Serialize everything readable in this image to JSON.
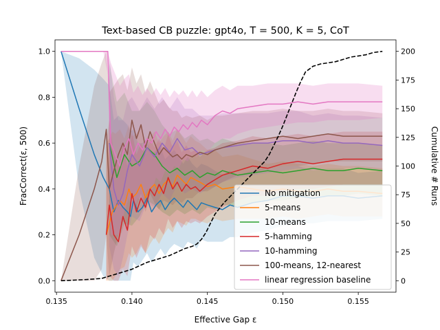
{
  "chart_data": {
    "type": "line",
    "title": "Text-based CB puzzle: gpt4o, T = 500, K = 5, CoT",
    "xlabel": "Effective Gap ε",
    "ylabel": "FracCorrect(ε, 500)",
    "y2label": "Cumulative # Runs",
    "xlim": [
      0.1349,
      0.1575
    ],
    "ylim": [
      -0.05,
      1.05
    ],
    "y2lim": [
      -10,
      210
    ],
    "xticks": [
      0.135,
      0.14,
      0.145,
      0.15,
      0.155
    ],
    "xtick_labels": [
      "0.135",
      "0.140",
      "0.145",
      "0.150",
      "0.155"
    ],
    "yticks": [
      0.0,
      0.2,
      0.4,
      0.6,
      0.8,
      1.0
    ],
    "ytick_labels": [
      "0.0",
      "0.2",
      "0.4",
      "0.6",
      "0.8",
      "1.0"
    ],
    "y2ticks": [
      0,
      25,
      50,
      75,
      100,
      125,
      150,
      175,
      200
    ],
    "y2tick_labels": [
      "0",
      "25",
      "50",
      "75",
      "100",
      "125",
      "150",
      "175",
      "200"
    ],
    "legend_position": "lower-right",
    "series": [
      {
        "name": "No mitigation",
        "color": "#1f77b4",
        "band_alpha": 0.2,
        "x": [
          0.1353,
          0.1365,
          0.1375,
          0.1381,
          0.1385,
          0.1388,
          0.1391,
          0.1394,
          0.1397,
          0.1399,
          0.1401,
          0.1404,
          0.1407,
          0.141,
          0.1413,
          0.1416,
          0.1419,
          0.1422,
          0.1425,
          0.1428,
          0.1431,
          0.1434,
          0.1437,
          0.144,
          0.1443,
          0.1446,
          0.145,
          0.1455,
          0.146,
          0.1465,
          0.147,
          0.148,
          0.149,
          0.15,
          0.151,
          0.152,
          0.153,
          0.154,
          0.155,
          0.1566
        ],
        "y": [
          1.0,
          0.75,
          0.55,
          0.45,
          0.4,
          0.3,
          0.35,
          0.32,
          0.3,
          0.28,
          0.35,
          0.3,
          0.32,
          0.36,
          0.3,
          0.33,
          0.35,
          0.31,
          0.34,
          0.36,
          0.34,
          0.32,
          0.35,
          0.33,
          0.31,
          0.34,
          0.33,
          0.32,
          0.31,
          0.33,
          0.32,
          0.34,
          0.35,
          0.37,
          0.37,
          0.36,
          0.37,
          0.37,
          0.36,
          0.37
        ],
        "lo": [
          1.0,
          0.4,
          0.1,
          0.02,
          0.0,
          0.0,
          0.0,
          0.0,
          0.0,
          0.0,
          0.08,
          0.06,
          0.09,
          0.12,
          0.08,
          0.11,
          0.14,
          0.11,
          0.14,
          0.16,
          0.15,
          0.14,
          0.17,
          0.16,
          0.14,
          0.18,
          0.17,
          0.17,
          0.17,
          0.19,
          0.19,
          0.21,
          0.22,
          0.24,
          0.25,
          0.25,
          0.26,
          0.26,
          0.26,
          0.27
        ],
        "hi": [
          1.0,
          0.97,
          0.92,
          0.88,
          0.85,
          0.7,
          0.72,
          0.7,
          0.68,
          0.65,
          0.66,
          0.6,
          0.6,
          0.62,
          0.55,
          0.57,
          0.58,
          0.53,
          0.55,
          0.57,
          0.54,
          0.51,
          0.54,
          0.51,
          0.49,
          0.51,
          0.5,
          0.48,
          0.46,
          0.48,
          0.46,
          0.48,
          0.49,
          0.5,
          0.5,
          0.48,
          0.49,
          0.49,
          0.47,
          0.48
        ]
      },
      {
        "name": "5-means",
        "color": "#ff7f0e",
        "band_alpha": 0.2,
        "x": [
          0.1383,
          0.1385,
          0.1387,
          0.1389,
          0.1392,
          0.1395,
          0.1398,
          0.14,
          0.1403,
          0.1406,
          0.1409,
          0.1412,
          0.1415,
          0.1418,
          0.1421,
          0.1424,
          0.1427,
          0.143,
          0.1433,
          0.1436,
          0.1439,
          0.1442,
          0.1445,
          0.145,
          0.1455,
          0.146,
          0.147,
          0.148,
          0.149,
          0.15,
          0.151,
          0.152,
          0.153,
          0.154,
          0.155,
          0.1566
        ],
        "y": [
          0.2,
          0.25,
          0.3,
          0.32,
          0.35,
          0.33,
          0.4,
          0.36,
          0.38,
          0.42,
          0.36,
          0.4,
          0.42,
          0.38,
          0.42,
          0.44,
          0.41,
          0.46,
          0.44,
          0.42,
          0.45,
          0.44,
          0.43,
          0.41,
          0.42,
          0.4,
          0.41,
          0.4,
          0.39,
          0.4,
          0.39,
          0.39,
          0.4,
          0.39,
          0.39,
          0.38
        ],
        "lo": [
          0.0,
          0.0,
          0.0,
          0.02,
          0.05,
          0.06,
          0.12,
          0.1,
          0.12,
          0.16,
          0.12,
          0.16,
          0.19,
          0.16,
          0.2,
          0.23,
          0.21,
          0.26,
          0.25,
          0.24,
          0.27,
          0.27,
          0.26,
          0.25,
          0.27,
          0.26,
          0.27,
          0.27,
          0.27,
          0.28,
          0.27,
          0.28,
          0.29,
          0.28,
          0.28,
          0.28
        ],
        "hi": [
          0.6,
          0.62,
          0.65,
          0.64,
          0.66,
          0.62,
          0.68,
          0.63,
          0.64,
          0.67,
          0.6,
          0.63,
          0.65,
          0.6,
          0.63,
          0.65,
          0.61,
          0.66,
          0.63,
          0.6,
          0.63,
          0.61,
          0.6,
          0.57,
          0.57,
          0.54,
          0.55,
          0.53,
          0.51,
          0.52,
          0.51,
          0.5,
          0.51,
          0.5,
          0.5,
          0.49
        ]
      },
      {
        "name": "10-means",
        "color": "#2ca02c",
        "band_alpha": 0.2,
        "x": [
          0.1385,
          0.139,
          0.1395,
          0.14,
          0.1405,
          0.141,
          0.1415,
          0.142,
          0.1425,
          0.143,
          0.1435,
          0.144,
          0.1445,
          0.145,
          0.1455,
          0.146,
          0.1465,
          0.147,
          0.148,
          0.149,
          0.15,
          0.151,
          0.152,
          0.153,
          0.154,
          0.155,
          0.1566
        ],
        "y": [
          0.6,
          0.45,
          0.55,
          0.5,
          0.52,
          0.58,
          0.55,
          0.5,
          0.47,
          0.49,
          0.46,
          0.48,
          0.45,
          0.47,
          0.46,
          0.48,
          0.47,
          0.46,
          0.47,
          0.48,
          0.47,
          0.48,
          0.49,
          0.48,
          0.48,
          0.49,
          0.48
        ],
        "lo": [
          0.2,
          0.15,
          0.25,
          0.24,
          0.28,
          0.35,
          0.33,
          0.3,
          0.28,
          0.31,
          0.29,
          0.31,
          0.29,
          0.32,
          0.31,
          0.33,
          0.33,
          0.32,
          0.34,
          0.35,
          0.35,
          0.36,
          0.37,
          0.37,
          0.37,
          0.38,
          0.37
        ],
        "hi": [
          0.95,
          0.78,
          0.82,
          0.74,
          0.74,
          0.78,
          0.74,
          0.68,
          0.64,
          0.66,
          0.62,
          0.64,
          0.61,
          0.62,
          0.6,
          0.62,
          0.61,
          0.6,
          0.6,
          0.6,
          0.59,
          0.6,
          0.61,
          0.6,
          0.6,
          0.6,
          0.59
        ]
      },
      {
        "name": "5-hamming",
        "color": "#d62728",
        "band_alpha": 0.2,
        "x": [
          0.1383,
          0.1385,
          0.1388,
          0.1391,
          0.1394,
          0.1397,
          0.14,
          0.1403,
          0.1406,
          0.1409,
          0.1412,
          0.1415,
          0.1418,
          0.1421,
          0.1424,
          0.1427,
          0.143,
          0.1433,
          0.1436,
          0.1439,
          0.1442,
          0.1445,
          0.145,
          0.1455,
          0.146,
          0.147,
          0.148,
          0.149,
          0.15,
          0.151,
          0.152,
          0.153,
          0.154,
          0.155,
          0.1566
        ],
        "y": [
          0.2,
          0.33,
          0.2,
          0.17,
          0.28,
          0.22,
          0.38,
          0.3,
          0.36,
          0.32,
          0.4,
          0.37,
          0.42,
          0.38,
          0.45,
          0.4,
          0.43,
          0.39,
          0.42,
          0.4,
          0.41,
          0.39,
          0.42,
          0.44,
          0.46,
          0.48,
          0.5,
          0.49,
          0.51,
          0.52,
          0.51,
          0.52,
          0.53,
          0.53,
          0.53
        ],
        "lo": [
          0.0,
          0.02,
          0.0,
          0.0,
          0.05,
          0.02,
          0.15,
          0.1,
          0.15,
          0.12,
          0.2,
          0.18,
          0.23,
          0.2,
          0.27,
          0.23,
          0.26,
          0.23,
          0.26,
          0.25,
          0.26,
          0.25,
          0.28,
          0.3,
          0.32,
          0.35,
          0.37,
          0.37,
          0.39,
          0.4,
          0.4,
          0.41,
          0.42,
          0.42,
          0.42
        ],
        "hi": [
          0.6,
          0.7,
          0.55,
          0.5,
          0.6,
          0.5,
          0.65,
          0.55,
          0.6,
          0.55,
          0.62,
          0.58,
          0.62,
          0.57,
          0.64,
          0.58,
          0.61,
          0.56,
          0.59,
          0.56,
          0.57,
          0.54,
          0.57,
          0.58,
          0.6,
          0.61,
          0.63,
          0.62,
          0.63,
          0.64,
          0.63,
          0.64,
          0.65,
          0.65,
          0.65
        ]
      },
      {
        "name": "10-hamming",
        "color": "#9467bd",
        "band_alpha": 0.2,
        "x": [
          0.1385,
          0.1388,
          0.1391,
          0.1394,
          0.1397,
          0.14,
          0.1405,
          0.141,
          0.1415,
          0.142,
          0.1425,
          0.143,
          0.1435,
          0.144,
          0.1445,
          0.145,
          0.1455,
          0.146,
          0.147,
          0.148,
          0.149,
          0.15,
          0.151,
          0.152,
          0.153,
          0.154,
          0.155,
          0.1566
        ],
        "y": [
          0.6,
          0.4,
          0.33,
          0.38,
          0.48,
          0.55,
          0.5,
          0.58,
          0.54,
          0.6,
          0.56,
          0.62,
          0.57,
          0.58,
          0.55,
          0.56,
          0.57,
          0.58,
          0.59,
          0.6,
          0.6,
          0.61,
          0.61,
          0.6,
          0.61,
          0.6,
          0.6,
          0.59
        ],
        "lo": [
          0.15,
          0.05,
          0.02,
          0.1,
          0.2,
          0.28,
          0.26,
          0.34,
          0.32,
          0.38,
          0.35,
          0.42,
          0.38,
          0.4,
          0.38,
          0.4,
          0.41,
          0.43,
          0.45,
          0.46,
          0.47,
          0.48,
          0.49,
          0.48,
          0.49,
          0.49,
          0.49,
          0.48
        ],
        "hi": [
          0.98,
          0.8,
          0.7,
          0.7,
          0.78,
          0.8,
          0.74,
          0.8,
          0.75,
          0.8,
          0.75,
          0.8,
          0.75,
          0.75,
          0.72,
          0.72,
          0.72,
          0.73,
          0.73,
          0.73,
          0.73,
          0.74,
          0.74,
          0.72,
          0.73,
          0.72,
          0.72,
          0.71
        ]
      },
      {
        "name": "100-means, 12-nearest",
        "color": "#8c564b",
        "band_alpha": 0.2,
        "x": [
          0.1353,
          0.1365,
          0.1375,
          0.138,
          0.1383,
          0.1385,
          0.1388,
          0.1391,
          0.1394,
          0.1397,
          0.14,
          0.1403,
          0.1406,
          0.1409,
          0.1412,
          0.1415,
          0.1418,
          0.1421,
          0.1424,
          0.1427,
          0.143,
          0.1433,
          0.1436,
          0.144,
          0.1445,
          0.145,
          0.1455,
          0.146,
          0.147,
          0.148,
          0.149,
          0.15,
          0.151,
          0.152,
          0.153,
          0.154,
          0.155,
          0.1566
        ],
        "y": [
          0.0,
          0.2,
          0.4,
          0.52,
          0.66,
          0.4,
          0.48,
          0.55,
          0.6,
          0.55,
          0.7,
          0.62,
          0.68,
          0.58,
          0.65,
          0.6,
          0.55,
          0.58,
          0.56,
          0.54,
          0.55,
          0.53,
          0.55,
          0.54,
          0.56,
          0.55,
          0.57,
          0.58,
          0.6,
          0.61,
          0.62,
          0.63,
          0.62,
          0.63,
          0.64,
          0.63,
          0.63,
          0.63
        ],
        "lo": [
          0.0,
          0.0,
          0.0,
          0.05,
          0.2,
          0.02,
          0.12,
          0.2,
          0.26,
          0.24,
          0.38,
          0.32,
          0.38,
          0.3,
          0.38,
          0.34,
          0.31,
          0.35,
          0.34,
          0.33,
          0.35,
          0.34,
          0.36,
          0.36,
          0.39,
          0.39,
          0.41,
          0.43,
          0.46,
          0.47,
          0.49,
          0.5,
          0.5,
          0.51,
          0.52,
          0.52,
          0.52,
          0.52
        ],
        "hi": [
          0.0,
          0.5,
          0.85,
          0.95,
          1.0,
          0.82,
          0.85,
          0.88,
          0.9,
          0.83,
          0.93,
          0.86,
          0.9,
          0.82,
          0.87,
          0.82,
          0.77,
          0.79,
          0.76,
          0.74,
          0.74,
          0.71,
          0.72,
          0.71,
          0.72,
          0.7,
          0.72,
          0.72,
          0.73,
          0.74,
          0.74,
          0.75,
          0.74,
          0.74,
          0.75,
          0.74,
          0.74,
          0.73
        ]
      },
      {
        "name": "linear regression baseline",
        "color": "#e377c2",
        "band_alpha": 0.25,
        "x": [
          0.1353,
          0.1365,
          0.1375,
          0.1381,
          0.1384,
          0.1386,
          0.1389,
          0.1392,
          0.1395,
          0.1398,
          0.1401,
          0.1404,
          0.1407,
          0.141,
          0.1413,
          0.1416,
          0.1419,
          0.1422,
          0.1425,
          0.1428,
          0.1431,
          0.1434,
          0.1437,
          0.144,
          0.1443,
          0.1446,
          0.145,
          0.1455,
          0.146,
          0.1465,
          0.147,
          0.148,
          0.149,
          0.15,
          0.151,
          0.152,
          0.153,
          0.154,
          0.155,
          0.1566
        ],
        "y": [
          1.0,
          1.0,
          1.0,
          1.0,
          1.0,
          0.6,
          0.55,
          0.5,
          0.58,
          0.62,
          0.55,
          0.6,
          0.57,
          0.62,
          0.6,
          0.65,
          0.62,
          0.66,
          0.63,
          0.67,
          0.65,
          0.68,
          0.66,
          0.69,
          0.67,
          0.7,
          0.68,
          0.72,
          0.74,
          0.73,
          0.75,
          0.76,
          0.77,
          0.77,
          0.78,
          0.77,
          0.78,
          0.78,
          0.78,
          0.78
        ],
        "lo": [
          1.0,
          1.0,
          1.0,
          1.0,
          0.9,
          0.2,
          0.2,
          0.2,
          0.3,
          0.36,
          0.3,
          0.36,
          0.34,
          0.4,
          0.39,
          0.45,
          0.43,
          0.48,
          0.46,
          0.5,
          0.49,
          0.53,
          0.52,
          0.55,
          0.54,
          0.57,
          0.56,
          0.6,
          0.62,
          0.62,
          0.64,
          0.66,
          0.67,
          0.68,
          0.69,
          0.69,
          0.7,
          0.7,
          0.7,
          0.71
        ],
        "hi": [
          1.0,
          1.0,
          1.0,
          1.0,
          1.0,
          0.95,
          0.9,
          0.85,
          0.88,
          0.9,
          0.82,
          0.85,
          0.81,
          0.84,
          0.81,
          0.84,
          0.81,
          0.84,
          0.8,
          0.83,
          0.81,
          0.83,
          0.8,
          0.83,
          0.8,
          0.83,
          0.8,
          0.83,
          0.85,
          0.83,
          0.85,
          0.85,
          0.86,
          0.86,
          0.86,
          0.85,
          0.86,
          0.86,
          0.86,
          0.85
        ]
      }
    ],
    "cumulative_runs": {
      "name": "Cumulative # Runs",
      "color": "#000000",
      "dashed": true,
      "x": [
        0.1353,
        0.137,
        0.138,
        0.1385,
        0.139,
        0.1395,
        0.14,
        0.1405,
        0.141,
        0.1415,
        0.142,
        0.1425,
        0.143,
        0.1435,
        0.144,
        0.1443,
        0.1446,
        0.1449,
        0.1452,
        0.1455,
        0.1458,
        0.1461,
        0.1464,
        0.1467,
        0.147,
        0.1473,
        0.1476,
        0.1479,
        0.1482,
        0.1485,
        0.1488,
        0.1491,
        0.1494,
        0.1497,
        0.15,
        0.1503,
        0.1506,
        0.1509,
        0.1512,
        0.1515,
        0.152,
        0.1525,
        0.153,
        0.1535,
        0.154,
        0.1545,
        0.155,
        0.1555,
        0.156,
        0.1566
      ],
      "y": [
        0,
        1,
        2,
        4,
        6,
        8,
        10,
        13,
        16,
        18,
        20,
        22,
        25,
        28,
        30,
        32,
        36,
        42,
        50,
        58,
        63,
        68,
        72,
        76,
        80,
        84,
        88,
        92,
        96,
        100,
        104,
        110,
        118,
        126,
        135,
        145,
        155,
        165,
        174,
        182,
        187,
        189,
        190,
        191,
        193,
        195,
        196,
        197,
        199,
        200
      ]
    }
  }
}
